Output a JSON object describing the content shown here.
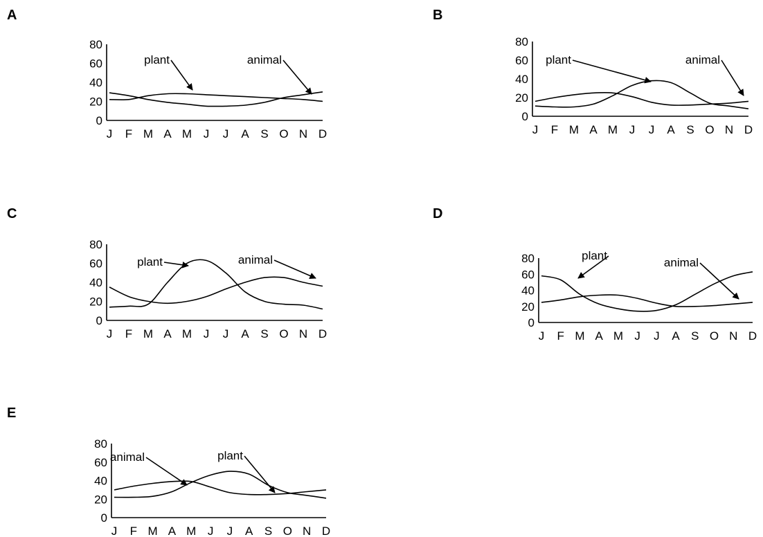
{
  "chart_data": [
    {
      "type": "line",
      "panel": "A",
      "categories": [
        "J",
        "F",
        "M",
        "A",
        "M",
        "J",
        "J",
        "A",
        "S",
        "O",
        "N",
        "D"
      ],
      "yticks": [
        "0",
        "20",
        "40",
        "60",
        "80"
      ],
      "ylim": [
        0,
        80
      ],
      "series": [
        {
          "name": "plant",
          "values": [
            22,
            22,
            26,
            28,
            28,
            27,
            26,
            25,
            24,
            23,
            22,
            20
          ]
        },
        {
          "name": "animal",
          "values": [
            29,
            26,
            22,
            19,
            17,
            15,
            15,
            16,
            19,
            24,
            27,
            30
          ]
        }
      ],
      "annotations": [
        {
          "text": "plant",
          "series": "plant"
        },
        {
          "text": "animal",
          "series": "animal"
        }
      ]
    },
    {
      "type": "line",
      "panel": "B",
      "categories": [
        "J",
        "F",
        "M",
        "A",
        "M",
        "J",
        "J",
        "A",
        "S",
        "O",
        "N",
        "D"
      ],
      "yticks": [
        "0",
        "20",
        "40",
        "60",
        "80"
      ],
      "ylim": [
        0,
        80
      ],
      "series": [
        {
          "name": "plant",
          "values": [
            11,
            10,
            10,
            13,
            22,
            33,
            38,
            36,
            25,
            14,
            11,
            8
          ]
        },
        {
          "name": "animal",
          "values": [
            16,
            20,
            23,
            25,
            25,
            21,
            15,
            12,
            12,
            13,
            14,
            16
          ]
        }
      ],
      "annotations": [
        {
          "text": "plant",
          "series": "plant"
        },
        {
          "text": "animal",
          "series": "animal"
        }
      ]
    },
    {
      "type": "line",
      "panel": "C",
      "categories": [
        "J",
        "F",
        "M",
        "A",
        "M",
        "J",
        "J",
        "A",
        "S",
        "O",
        "N",
        "D"
      ],
      "yticks": [
        "0",
        "20",
        "40",
        "60",
        "80"
      ],
      "ylim": [
        0,
        80
      ],
      "series": [
        {
          "name": "plant",
          "values": [
            14,
            15,
            17,
            40,
            60,
            63,
            50,
            30,
            20,
            17,
            16,
            12
          ]
        },
        {
          "name": "animal",
          "values": [
            35,
            25,
            20,
            18,
            20,
            25,
            33,
            40,
            45,
            45,
            40,
            36
          ]
        }
      ],
      "annotations": [
        {
          "text": "plant",
          "series": "plant"
        },
        {
          "text": "animal",
          "series": "animal"
        }
      ]
    },
    {
      "type": "line",
      "panel": "D",
      "categories": [
        "J",
        "F",
        "M",
        "A",
        "M",
        "J",
        "J",
        "A",
        "S",
        "O",
        "N",
        "D"
      ],
      "yticks": [
        "0",
        "20",
        "40",
        "60",
        "80"
      ],
      "ylim": [
        0,
        80
      ],
      "series": [
        {
          "name": "plant",
          "values": [
            58,
            53,
            35,
            23,
            17,
            14,
            15,
            22,
            35,
            48,
            58,
            63
          ]
        },
        {
          "name": "animal",
          "values": [
            25,
            28,
            32,
            34,
            34,
            30,
            24,
            20,
            20,
            21,
            23,
            25
          ]
        }
      ],
      "annotations": [
        {
          "text": "plant",
          "series": "plant"
        },
        {
          "text": "animal",
          "series": "animal"
        }
      ]
    },
    {
      "type": "line",
      "panel": "E",
      "categories": [
        "J",
        "F",
        "M",
        "A",
        "M",
        "J",
        "J",
        "A",
        "S",
        "O",
        "N",
        "D"
      ],
      "yticks": [
        "0",
        "20",
        "40",
        "60",
        "80"
      ],
      "ylim": [
        0,
        80
      ],
      "series": [
        {
          "name": "plant",
          "values": [
            22,
            22,
            23,
            28,
            38,
            46,
            50,
            47,
            35,
            27,
            24,
            21
          ]
        },
        {
          "name": "animal",
          "values": [
            30,
            34,
            37,
            39,
            39,
            33,
            27,
            25,
            25,
            26,
            28,
            30
          ]
        }
      ],
      "annotations": [
        {
          "text": "animal",
          "series": "animal"
        },
        {
          "text": "plant",
          "series": "plant"
        }
      ]
    }
  ]
}
